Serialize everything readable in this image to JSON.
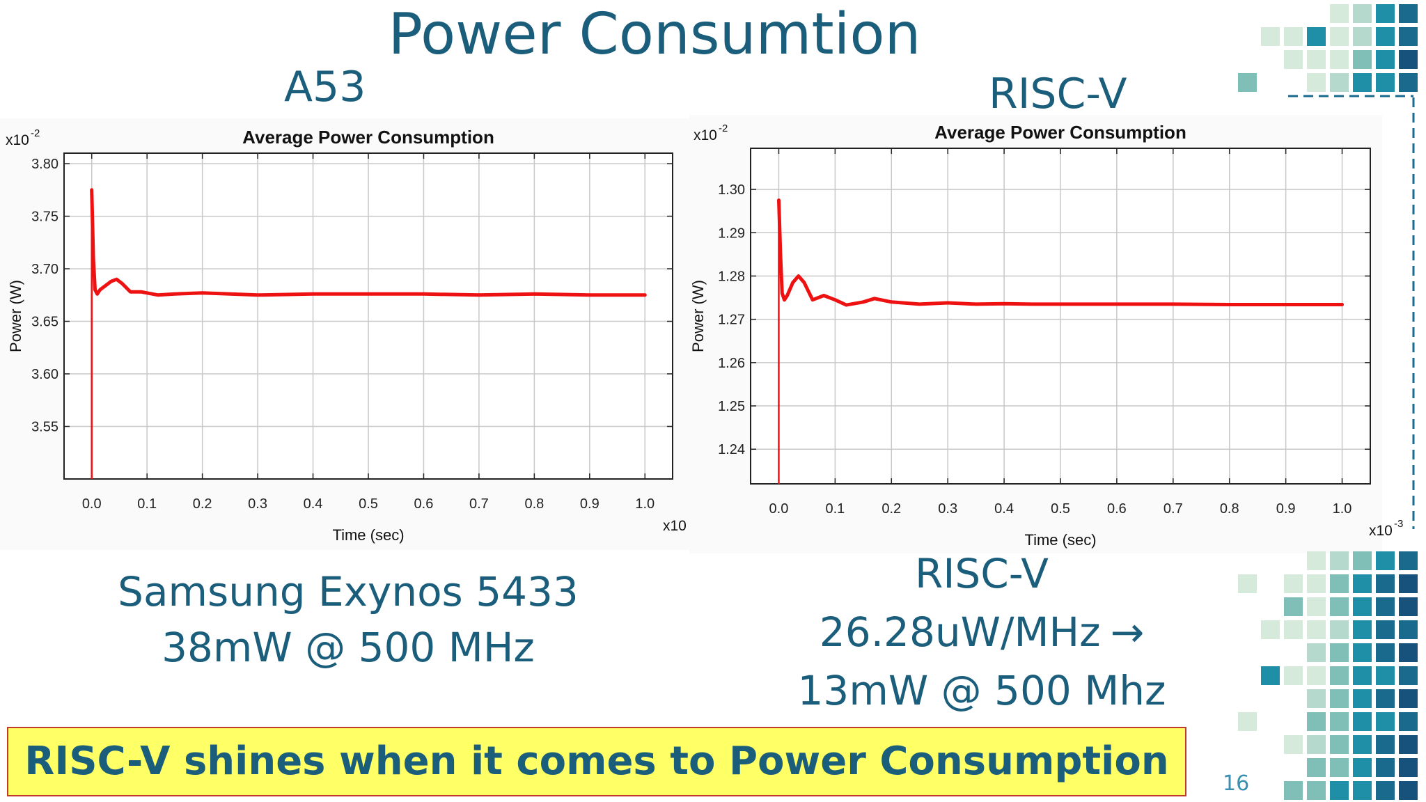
{
  "slide": {
    "title": "Power Consumtion",
    "page_number": "16"
  },
  "left_panel": {
    "heading": "A53",
    "caption_line1": "Samsung Exynos 5433",
    "caption_line2": "38mW @ 500 MHz"
  },
  "right_panel": {
    "heading": "RISC-V",
    "caption_line1": "RISC-V",
    "caption_line2": "26.28uW/MHz",
    "caption_arrow": "→",
    "caption_line3": "13mW @ 500 Mhz"
  },
  "banner": {
    "text": "RISC-V shines when it comes to Power Consumption",
    "background_color": "#ffff66",
    "border_color": "#c0392b"
  },
  "chart_data": [
    {
      "type": "line",
      "title": "Average Power Consumption",
      "xlabel": "Time (sec)",
      "ylabel": "Power (W)",
      "y_multiplier_label": "x10",
      "y_multiplier_exp": "-2",
      "x_multiplier_label": "x10",
      "x_multiplier_exp": "",
      "xlim": [
        -0.05,
        1.05
      ],
      "ylim": [
        3.5,
        3.81
      ],
      "x_ticks": [
        "0.0",
        "0.1",
        "0.2",
        "0.3",
        "0.4",
        "0.5",
        "0.6",
        "0.7",
        "0.8",
        "0.9",
        "1.0"
      ],
      "y_ticks": [
        "3.80",
        "3.75",
        "3.70",
        "3.65",
        "3.60",
        "3.55"
      ],
      "y_tick_values": [
        3.8,
        3.75,
        3.7,
        3.65,
        3.6,
        3.55
      ],
      "grid": true,
      "line_color": "#ee1111",
      "spike": {
        "x": 0.0,
        "y_top": 3.775,
        "y_bottom": 3.5
      },
      "series": [
        {
          "x": [
            0.0,
            0.003,
            0.006,
            0.01,
            0.015,
            0.025,
            0.035,
            0.045,
            0.055,
            0.07,
            0.09,
            0.12,
            0.15,
            0.2,
            0.25,
            0.3,
            0.4,
            0.5,
            0.6,
            0.7,
            0.8,
            0.9,
            1.0
          ],
          "y": [
            3.775,
            3.71,
            3.68,
            3.676,
            3.68,
            3.684,
            3.688,
            3.69,
            3.686,
            3.678,
            3.678,
            3.675,
            3.676,
            3.677,
            3.676,
            3.675,
            3.676,
            3.676,
            3.676,
            3.675,
            3.676,
            3.675,
            3.675
          ]
        }
      ]
    },
    {
      "type": "line",
      "title": "Average Power Consumption",
      "xlabel": "Time (sec)",
      "ylabel": "Power (W)",
      "y_multiplier_label": "x10",
      "y_multiplier_exp": "-2",
      "x_multiplier_label": "x10",
      "x_multiplier_exp": "-3",
      "xlim": [
        -0.05,
        1.05
      ],
      "ylim": [
        1.232,
        1.3095
      ],
      "x_ticks": [
        "0.0",
        "0.1",
        "0.2",
        "0.3",
        "0.4",
        "0.5",
        "0.6",
        "0.7",
        "0.8",
        "0.9",
        "1.0"
      ],
      "y_ticks": [
        "1.30",
        "1.29",
        "1.28",
        "1.27",
        "1.26",
        "1.25",
        "1.24"
      ],
      "y_tick_values": [
        1.3,
        1.29,
        1.28,
        1.27,
        1.26,
        1.25,
        1.24
      ],
      "grid": true,
      "line_color": "#ee1111",
      "spike": {
        "x": 0.0,
        "y_top": 1.2975,
        "y_bottom": 1.232
      },
      "series": [
        {
          "x": [
            0.0,
            0.003,
            0.006,
            0.01,
            0.015,
            0.025,
            0.035,
            0.045,
            0.06,
            0.08,
            0.1,
            0.12,
            0.15,
            0.17,
            0.2,
            0.25,
            0.3,
            0.35,
            0.4,
            0.45,
            0.5,
            0.6,
            0.7,
            0.8,
            0.9,
            1.0
          ],
          "y": [
            1.2975,
            1.285,
            1.276,
            1.2745,
            1.2755,
            1.2785,
            1.28,
            1.2785,
            1.2745,
            1.2755,
            1.2745,
            1.2733,
            1.274,
            1.2748,
            1.274,
            1.2735,
            1.2738,
            1.2735,
            1.2736,
            1.2735,
            1.2735,
            1.2735,
            1.2735,
            1.2734,
            1.2734,
            1.2734
          ]
        }
      ]
    }
  ],
  "decoration": {
    "palette": [
      "#d5eadb",
      "#b6d9ce",
      "#7fbfb8",
      "#1e8fa6",
      "#1a6a8e",
      "#16527c"
    ]
  }
}
